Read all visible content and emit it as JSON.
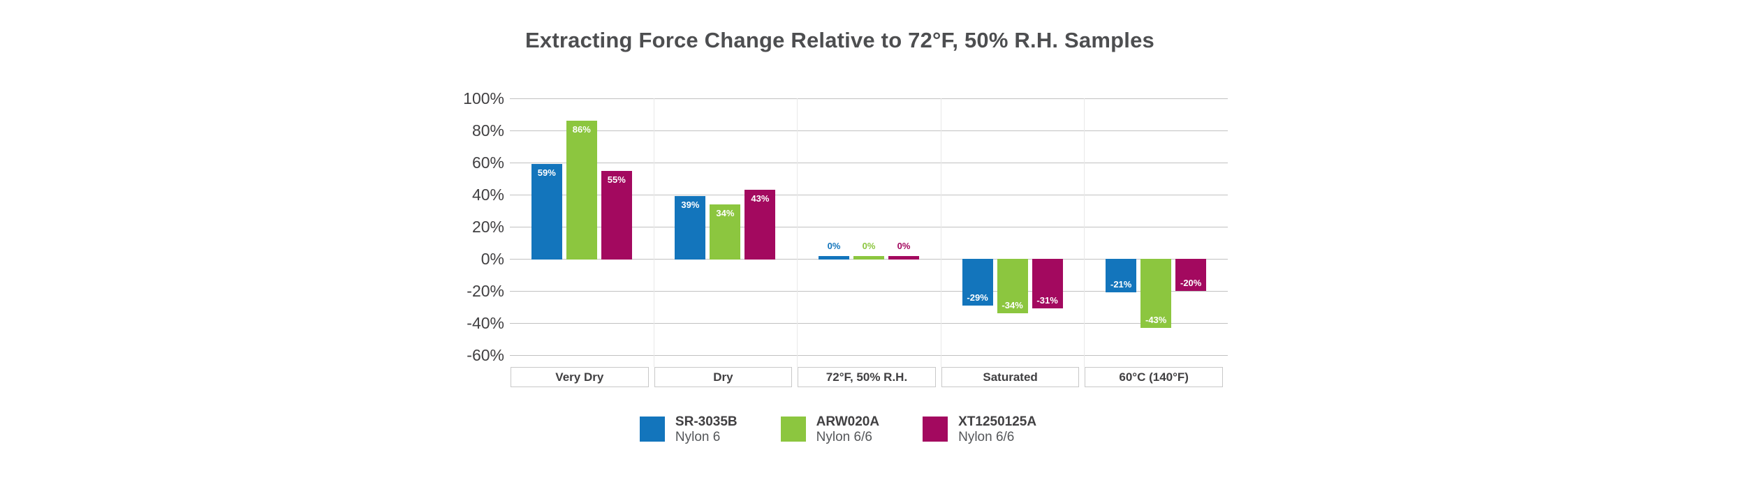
{
  "title": "Extracting Force Change Relative to 72°F, 50% R.H. Samples",
  "chart_data": {
    "type": "bar",
    "title": "Extracting Force Change Relative to 72°F, 50% R.H. Samples",
    "categories": [
      "Very Dry",
      "Dry",
      "72°F, 50% R.H.",
      "Saturated",
      "60°C (140°F)"
    ],
    "series": [
      {
        "name": "SR-3035B",
        "material": "Nylon 6",
        "color": "#1375BC",
        "values": [
          59,
          39,
          0,
          -29,
          -21
        ]
      },
      {
        "name": "ARW020A",
        "material": "Nylon 6/6",
        "color": "#8CC63F",
        "values": [
          86,
          34,
          0,
          -34,
          -43
        ]
      },
      {
        "name": "XT1250125A",
        "material": "Nylon 6/6",
        "color": "#A3095F",
        "values": [
          55,
          43,
          0,
          -31,
          -20
        ]
      }
    ],
    "value_label_format": "{v}%",
    "y_axis": {
      "min": -60,
      "max": 100,
      "step": 20,
      "tick_format": "{v}%"
    },
    "grid": true,
    "legend_position": "bottom"
  },
  "colors": {
    "series_blue": "#1375BC",
    "series_green": "#8CC63F",
    "series_magenta": "#A3095F",
    "title_text": "#4D4E50",
    "axis_text": "#414042",
    "gridline": "#C1C1C1",
    "panel_separator": "#E9E9E9",
    "category_box_border": "#C8C8C8",
    "value_label_text": "#FFFFFF",
    "background": "#FFFFFF"
  }
}
